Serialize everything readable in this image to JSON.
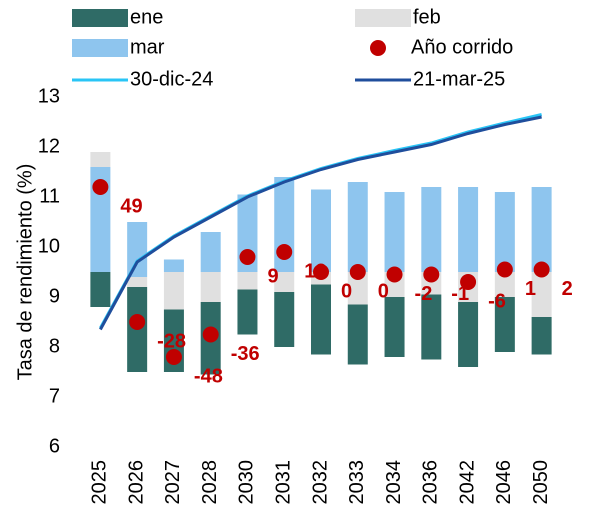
{
  "chart_data": {
    "type": "floating-bar-line",
    "y_axis_label": "Tasa de rendimiento (%)",
    "categories": [
      "2025",
      "2026",
      "2027",
      "2028",
      "2030",
      "2031",
      "2032",
      "2033",
      "2034",
      "2036",
      "2042",
      "2046",
      "2050"
    ],
    "ylim": [
      6,
      13
    ],
    "yticks": [
      6,
      7,
      8,
      9,
      10,
      11,
      12,
      13
    ],
    "bars": [
      {
        "name": "ene",
        "color": "#2f6b66",
        "values": [
          [
            8.8,
            9.5
          ],
          [
            7.5,
            9.2
          ],
          [
            7.5,
            8.75
          ],
          [
            7.45,
            8.9
          ],
          [
            8.25,
            9.15
          ],
          [
            8.0,
            9.1
          ],
          [
            7.85,
            9.25
          ],
          [
            7.65,
            8.85
          ],
          [
            7.8,
            9.0
          ],
          [
            7.75,
            9.05
          ],
          [
            7.6,
            8.9
          ],
          [
            7.9,
            9.0
          ],
          [
            7.85,
            8.6
          ]
        ]
      },
      {
        "name": "feb",
        "color": "#e0e0e0",
        "values": [
          [
            11.6,
            11.9
          ],
          [
            9.2,
            9.4
          ],
          [
            8.75,
            9.5
          ],
          [
            8.9,
            9.5
          ],
          [
            9.15,
            9.5
          ],
          [
            9.1,
            9.5
          ],
          [
            9.25,
            9.5
          ],
          [
            8.85,
            9.5
          ],
          [
            9.0,
            9.5
          ],
          [
            9.05,
            9.5
          ],
          [
            8.9,
            9.5
          ],
          [
            9.0,
            9.5
          ],
          [
            8.6,
            9.5
          ]
        ]
      },
      {
        "name": "mar",
        "color": "#8ec5ee",
        "values": [
          [
            9.5,
            11.6
          ],
          [
            9.4,
            10.5
          ],
          [
            9.5,
            9.75
          ],
          [
            9.5,
            10.3
          ],
          [
            9.5,
            11.05
          ],
          [
            9.5,
            11.4
          ],
          [
            9.5,
            11.15
          ],
          [
            9.5,
            11.3
          ],
          [
            9.5,
            11.1
          ],
          [
            9.5,
            11.2
          ],
          [
            9.5,
            11.2
          ],
          [
            9.5,
            11.1
          ],
          [
            9.5,
            11.2
          ]
        ]
      }
    ],
    "points": {
      "name": "Año corrido",
      "color": "#c00000",
      "values": [
        11.2,
        8.5,
        7.8,
        8.25,
        9.8,
        9.9,
        9.5,
        9.5,
        9.45,
        9.45,
        9.3,
        9.55,
        9.55
      ],
      "value_labels": [
        49,
        -28,
        -48,
        -36,
        9,
        12,
        0,
        0,
        -2,
        -1,
        -6,
        1,
        2
      ]
    },
    "lines": [
      {
        "name": "30-dic-24",
        "color": "#29c5f6",
        "values": [
          8.38,
          9.72,
          10.22,
          10.62,
          11.02,
          11.32,
          11.57,
          11.77,
          11.93,
          12.08,
          12.3,
          12.48,
          12.65
        ]
      },
      {
        "name": "21-mar-25",
        "color": "#1f4e9c",
        "values": [
          8.35,
          9.7,
          10.2,
          10.6,
          11.0,
          11.3,
          11.55,
          11.75,
          11.9,
          12.05,
          12.27,
          12.45,
          12.6
        ]
      }
    ]
  }
}
